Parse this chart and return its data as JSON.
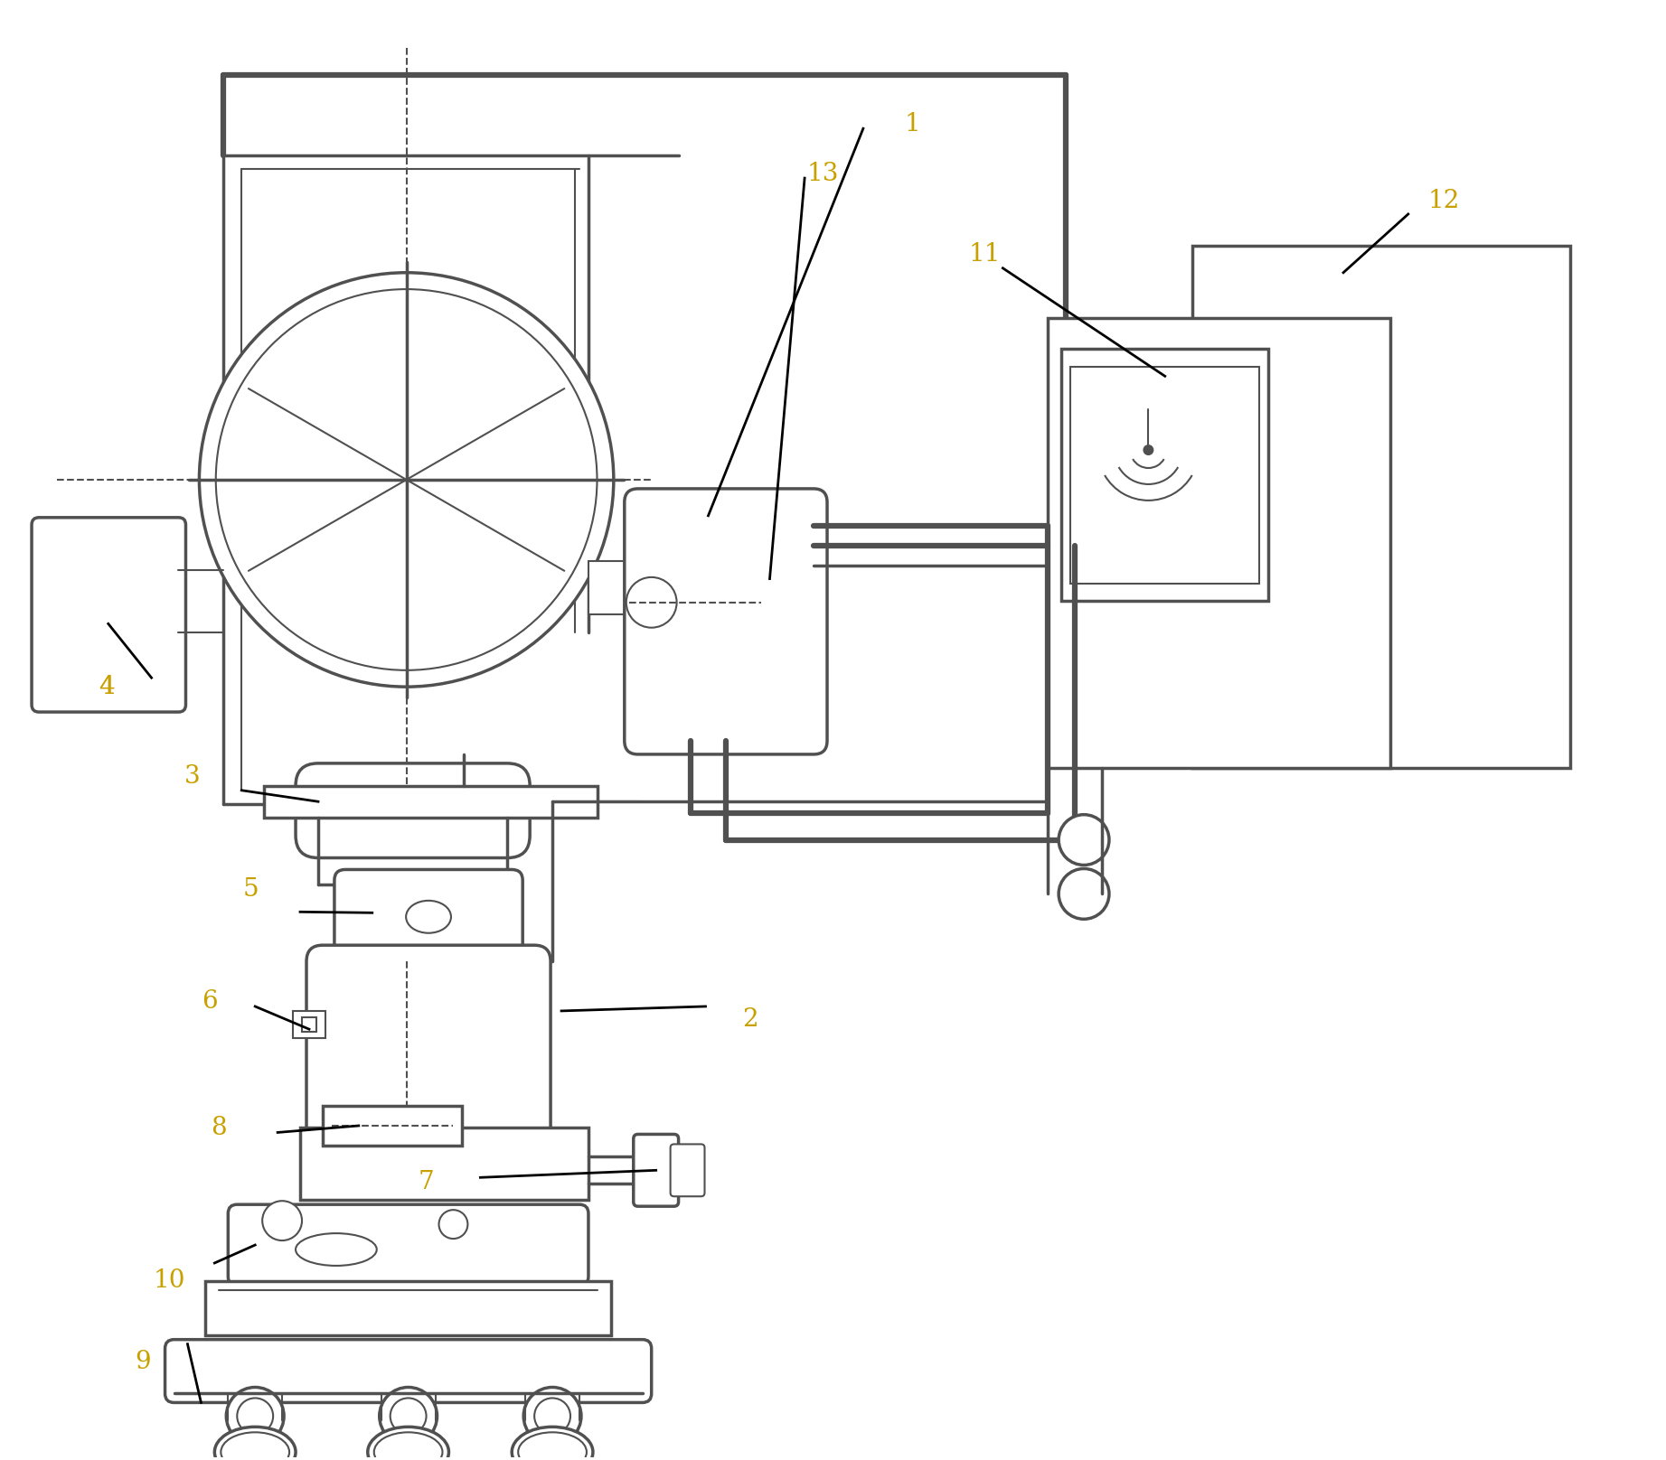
{
  "bg": "#ffffff",
  "lc": "#505050",
  "lbl": "#c8a000",
  "tl": 1.5,
  "ml": 2.5,
  "thk": 4.5,
  "fs": 20,
  "fw": 18.43,
  "fh": 16.16
}
